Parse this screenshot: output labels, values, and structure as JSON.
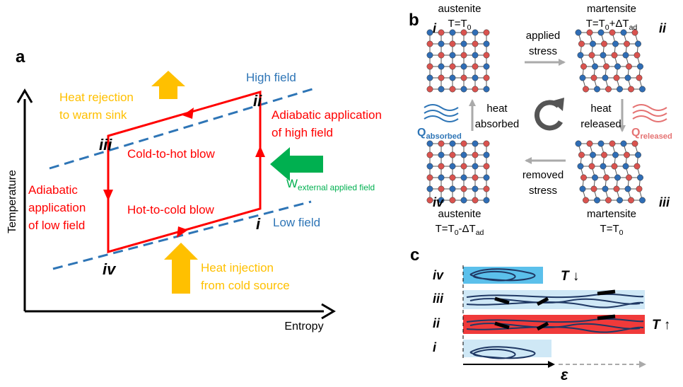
{
  "panel_a": {
    "label": "a",
    "y_axis": "Temperature",
    "x_axis": "Entropy",
    "high_field": "High field",
    "low_field": "Low field",
    "heat_rejection": [
      "Heat rejection",
      "to warm sink"
    ],
    "adiabatic_high": [
      "Adiabatic application",
      "of high field"
    ],
    "cold_to_hot": "Cold-to-hot blow",
    "hot_to_cold": "Hot-to-cold blow",
    "adiabatic_low": [
      "Adiabatic",
      "application",
      "of low field"
    ],
    "work": [
      "W",
      "external applied field"
    ],
    "heat_injection": [
      "Heat injection",
      "from cold source"
    ],
    "states": [
      "i",
      "ii",
      "iii",
      "iv"
    ]
  },
  "panel_b": {
    "label": "b",
    "states": [
      "i",
      "ii",
      "iii",
      "iv"
    ],
    "top_left": {
      "phase": "austenite",
      "temp": [
        "T=T",
        "0"
      ]
    },
    "top_right": {
      "phase": "martensite",
      "temp": [
        "T=T",
        "0",
        "+ΔT",
        "ad"
      ]
    },
    "bottom_left": {
      "phase": "austenite",
      "temp": [
        "T=T",
        "0",
        "-ΔT",
        "ad"
      ]
    },
    "bottom_right": {
      "phase": "martensite",
      "temp": [
        "T=T",
        "0"
      ]
    },
    "applied_stress": [
      "applied",
      "stress"
    ],
    "removed_stress": [
      "removed",
      "stress"
    ],
    "heat_absorbed": [
      "heat",
      "absorbed"
    ],
    "heat_released": [
      "heat",
      "released"
    ],
    "q_absorbed": [
      "Q",
      "absorbed"
    ],
    "q_released": [
      "Q",
      "released"
    ]
  },
  "panel_c": {
    "label": "c",
    "rows": [
      "iv",
      "iii",
      "ii",
      "i"
    ],
    "t_down": "T ↓",
    "t_up": "T ↑",
    "strain": "ε"
  }
}
